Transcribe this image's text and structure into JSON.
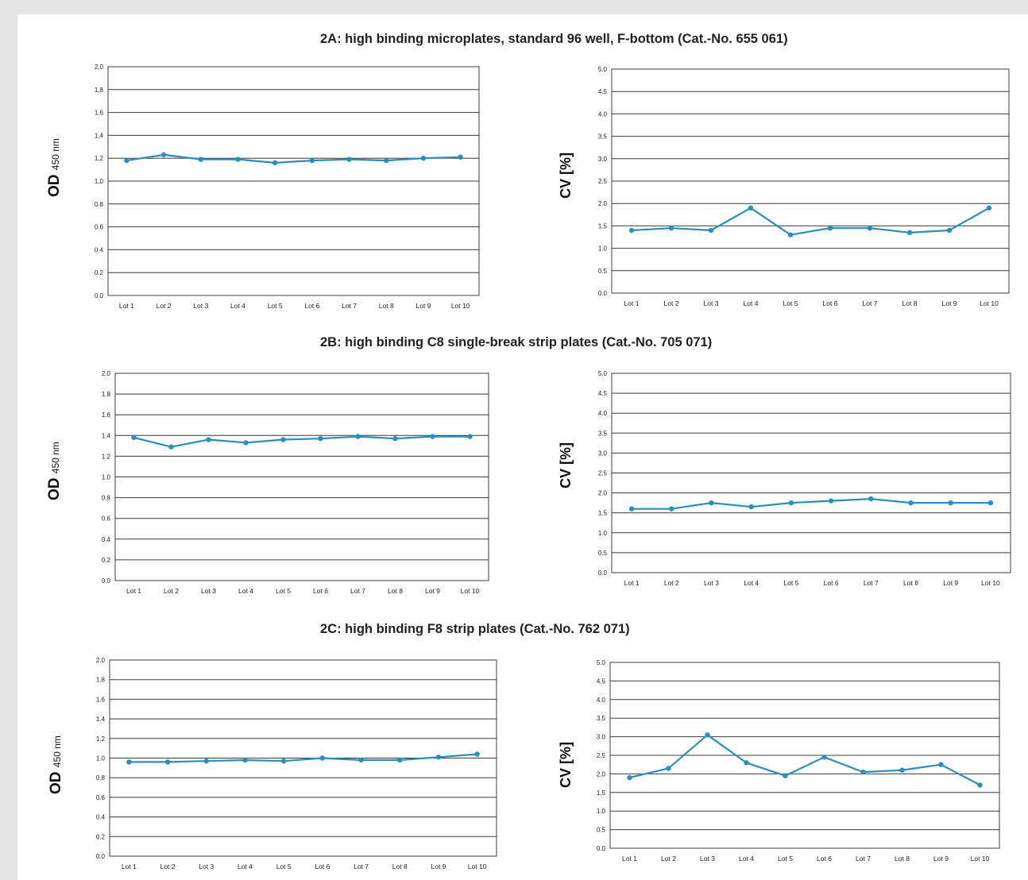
{
  "sections": [
    {
      "title": "2A: high binding microplates, standard 96 well, F-bottom (Cat.-No. 655 061)"
    },
    {
      "title": "2B: high binding C8 single-break strip plates (Cat.-No. 705 071)"
    },
    {
      "title": "2C: high binding F8 strip plates (Cat.-No. 762 071)"
    }
  ],
  "colors": {
    "line": "#2a8fbf",
    "grid": "#3c3c3c",
    "text": "#222222"
  },
  "chart_data": [
    {
      "id": "2A-OD",
      "type": "line",
      "ylabel": "OD",
      "ylabel_sub": "450 nm",
      "categories": [
        "Lot 1",
        "Lot 2",
        "Lot 3",
        "Lot 4",
        "Lot 5",
        "Lot 6",
        "Lot 7",
        "Lot 8",
        "Lot 9",
        "Lot 10"
      ],
      "yticks": [
        "0.0",
        "0.2",
        "0.4",
        "0.6",
        "0.8",
        "1,0",
        "1,2",
        "1,4",
        "1,6",
        "1,8",
        "2,0"
      ],
      "ylim": [
        0,
        2.0
      ],
      "series": [
        {
          "values": [
            1.18,
            1.23,
            1.19,
            1.19,
            1.16,
            1.18,
            1.19,
            1.18,
            1.2,
            1.21
          ]
        }
      ]
    },
    {
      "id": "2A-CV",
      "type": "line",
      "ylabel": "CV [%]",
      "categories": [
        "Lot 1",
        "Lot 2",
        "Lot 3",
        "Lot 4",
        "Lot 5",
        "Lot 6",
        "Lot 7",
        "Lot 8",
        "Lot 9",
        "Lot 10"
      ],
      "yticks": [
        "0.0",
        "0.5",
        "1.0",
        "1.5",
        "2.0",
        "2.5",
        "3.0",
        "3.5",
        "4.0",
        "4.5",
        "5.0"
      ],
      "ylim": [
        0,
        5.0
      ],
      "series": [
        {
          "values": [
            1.4,
            1.45,
            1.4,
            1.9,
            1.3,
            1.45,
            1.45,
            1.35,
            1.4,
            1.9
          ]
        }
      ]
    },
    {
      "id": "2B-OD",
      "type": "line",
      "ylabel": "OD",
      "ylabel_sub": "450 nm",
      "categories": [
        "Lot 1",
        "Lot 2",
        "Lot 3",
        "Lot 4",
        "Lot 5",
        "Lot 6",
        "Lot 7",
        "Lot 8",
        "Lot 9",
        "Lot 10"
      ],
      "yticks": [
        "0.0",
        "0.2",
        "0.4",
        "0.6",
        "0.8",
        "1.0",
        "1.2",
        "1.4",
        "1.6",
        "1.8",
        "2.0"
      ],
      "ylim": [
        0,
        2.0
      ],
      "series": [
        {
          "values": [
            1.38,
            1.29,
            1.36,
            1.33,
            1.36,
            1.37,
            1.39,
            1.37,
            1.39,
            1.39
          ]
        }
      ]
    },
    {
      "id": "2B-CV",
      "type": "line",
      "ylabel": "CV [%]",
      "categories": [
        "Lot 1",
        "Lot 2",
        "Lot 3",
        "Lot 4",
        "Lot 5",
        "Lot 6",
        "Lot 7",
        "Lot 8",
        "Lot 9",
        "Lot 10"
      ],
      "yticks": [
        "0.0",
        "0.5",
        "1.0",
        "1.5",
        "2.0",
        "2.5",
        "3.0",
        "3.5",
        "4.0",
        "4.5",
        "5.0"
      ],
      "ylim": [
        0,
        5.0
      ],
      "series": [
        {
          "values": [
            1.6,
            1.6,
            1.75,
            1.65,
            1.75,
            1.8,
            1.85,
            1.75,
            1.75,
            1.75
          ]
        }
      ]
    },
    {
      "id": "2C-OD",
      "type": "line",
      "ylabel": "OD",
      "ylabel_sub": "450 nm",
      "categories": [
        "Lot 1",
        "Lot 2",
        "Lot 3",
        "Lot 4",
        "Lot 5",
        "Lot 6",
        "Lot 7",
        "Lot 8",
        "Lot 9",
        "Lot 10"
      ],
      "yticks": [
        "0.0",
        "0.2",
        "0.4",
        "0.6",
        "0.8",
        "1.0",
        "1.2",
        "1.4",
        "1.6",
        "1.8",
        "2.0"
      ],
      "ylim": [
        0,
        2.0
      ],
      "series": [
        {
          "values": [
            0.96,
            0.96,
            0.97,
            0.98,
            0.97,
            1.0,
            0.98,
            0.98,
            1.01,
            1.04
          ]
        }
      ]
    },
    {
      "id": "2C-CV",
      "type": "line",
      "ylabel": "CV [%]",
      "categories": [
        "Lot 1",
        "Lot 2",
        "Lot 3",
        "Lot 4",
        "Lot 5",
        "Lot 6",
        "Lot 7",
        "Lot 8",
        "Lot 9",
        "Lot 10"
      ],
      "yticks": [
        "0.0",
        "0.5",
        "1.0",
        "1.5",
        "2.0",
        "2.5",
        "3.0",
        "3.5",
        "4.0",
        "4.5",
        "5.0"
      ],
      "ylim": [
        0,
        5.0
      ],
      "series": [
        {
          "values": [
            1.9,
            2.15,
            3.05,
            2.3,
            1.95,
            2.45,
            2.05,
            2.1,
            2.25,
            1.7
          ]
        }
      ]
    }
  ]
}
